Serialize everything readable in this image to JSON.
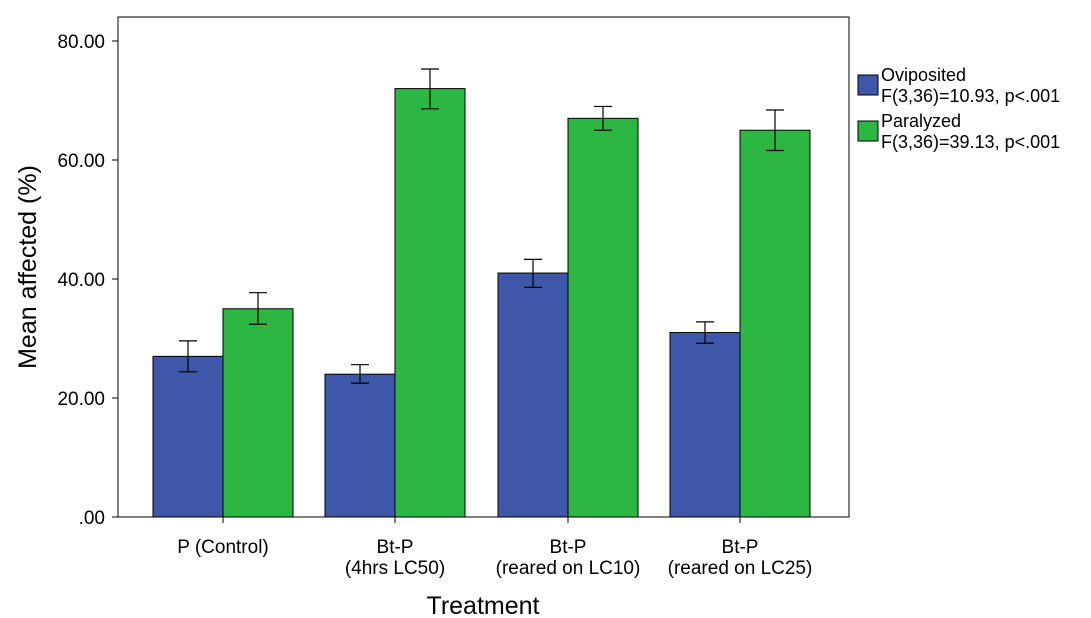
{
  "chart_data": {
    "type": "bar",
    "xlabel": "Treatment",
    "ylabel": "Mean affected (%)",
    "ylim": [
      0,
      80
    ],
    "yticks": [
      ".00",
      "20.00",
      "40.00",
      "60.00",
      "80.00"
    ],
    "ytick_values": [
      0,
      20,
      40,
      60,
      80
    ],
    "categories": [
      [
        "P (Control)"
      ],
      [
        "Bt-P",
        "(4hrs LC50)"
      ],
      [
        "Bt-P",
        "(reared on LC10)"
      ],
      [
        "Bt-P",
        "(reared on LC25)"
      ]
    ],
    "series": [
      {
        "name": "Oviposited",
        "stat": "F(3,36)=10.93, p<.001",
        "color": "#3f57a8",
        "values": [
          27,
          24,
          41,
          31
        ],
        "error_low": [
          24.4,
          22.5,
          38.6,
          29.2
        ],
        "error_high": [
          29.6,
          25.6,
          43.3,
          32.8
        ]
      },
      {
        "name": "Paralyzed",
        "stat": "F(3,36)=39.13, p<.001",
        "color": "#2bb742",
        "values": [
          35,
          72,
          67,
          65
        ],
        "error_low": [
          32.4,
          68.6,
          65.0,
          61.6
        ],
        "error_high": [
          37.7,
          75.3,
          69.0,
          68.4
        ]
      }
    ],
    "grid": false,
    "legend_position": "right"
  }
}
